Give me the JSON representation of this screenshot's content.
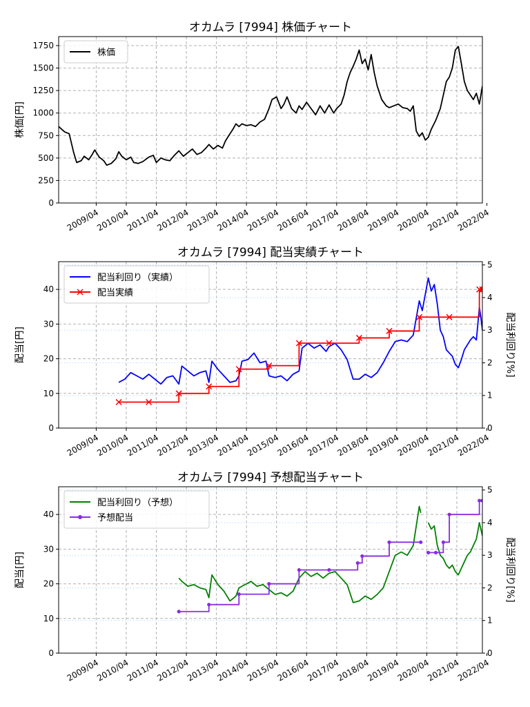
{
  "colors": {
    "price": "#000000",
    "yield_actual": "#0000ff",
    "dividend_actual": "#ff0000",
    "yield_forecast": "#008000",
    "dividend_forecast": "#8a2be2",
    "grid": "#b0b0b0"
  },
  "chart_data": [
    {
      "type": "line",
      "title": "オカムラ [7994]  株価チャート",
      "ylabel": "株価[円]",
      "xlabel": "",
      "ylim": [
        0,
        1850
      ],
      "yticks": [
        0,
        250,
        500,
        750,
        1000,
        1250,
        1500,
        1750
      ],
      "xlim": [
        2008.0,
        2022.1
      ],
      "xticks": [
        {
          "x": 2009.25,
          "label": "2009/04"
        },
        {
          "x": 2010.25,
          "label": "2010/04"
        },
        {
          "x": 2011.25,
          "label": "2011/04"
        },
        {
          "x": 2012.25,
          "label": "2012/04"
        },
        {
          "x": 2013.25,
          "label": "2013/04"
        },
        {
          "x": 2014.25,
          "label": "2014/04"
        },
        {
          "x": 2015.25,
          "label": "2015/04"
        },
        {
          "x": 2016.25,
          "label": "2016/04"
        },
        {
          "x": 2017.25,
          "label": "2017/04"
        },
        {
          "x": 2018.25,
          "label": "2018/04"
        },
        {
          "x": 2019.25,
          "label": "2019/04"
        },
        {
          "x": 2020.25,
          "label": "2020/04"
        },
        {
          "x": 2021.25,
          "label": "2021/04"
        },
        {
          "x": 2022.25,
          "label": "2022/04"
        }
      ],
      "grid": true,
      "legend": "top-left",
      "series": [
        {
          "name": "株価",
          "color": "#000000",
          "x": [
            2008.0,
            2008.2,
            2008.35,
            2008.5,
            2008.6,
            2008.75,
            2008.85,
            2009.0,
            2009.1,
            2009.2,
            2009.35,
            2009.5,
            2009.6,
            2009.75,
            2009.9,
            2010.0,
            2010.1,
            2010.25,
            2010.4,
            2010.5,
            2010.65,
            2010.8,
            2011.0,
            2011.15,
            2011.25,
            2011.4,
            2011.55,
            2011.7,
            2011.85,
            2012.0,
            2012.15,
            2012.3,
            2012.45,
            2012.6,
            2012.75,
            2012.9,
            2013.0,
            2013.15,
            2013.3,
            2013.45,
            2013.55,
            2013.7,
            2013.8,
            2013.9,
            2014.0,
            2014.1,
            2014.25,
            2014.4,
            2014.55,
            2014.7,
            2014.85,
            2015.0,
            2015.1,
            2015.25,
            2015.4,
            2015.5,
            2015.6,
            2015.75,
            2015.9,
            2016.0,
            2016.1,
            2016.25,
            2016.4,
            2016.55,
            2016.7,
            2016.85,
            2017.0,
            2017.15,
            2017.25,
            2017.4,
            2017.5,
            2017.6,
            2017.7,
            2017.8,
            2017.9,
            2018.0,
            2018.1,
            2018.2,
            2018.3,
            2018.4,
            2018.5,
            2018.6,
            2018.75,
            2018.9,
            2019.0,
            2019.15,
            2019.3,
            2019.45,
            2019.6,
            2019.7,
            2019.8,
            2019.9,
            2020.0,
            2020.1,
            2020.2,
            2020.3,
            2020.4,
            2020.55,
            2020.7,
            2020.8,
            2020.9,
            2021.0,
            2021.1,
            2021.2,
            2021.3,
            2021.4,
            2021.5,
            2021.6,
            2021.7,
            2021.8,
            2021.9,
            2022.0,
            2022.1
          ],
          "values": [
            850,
            790,
            770,
            560,
            450,
            470,
            520,
            480,
            530,
            590,
            510,
            470,
            420,
            440,
            490,
            570,
            520,
            480,
            510,
            450,
            440,
            460,
            510,
            530,
            450,
            500,
            480,
            470,
            530,
            580,
            520,
            560,
            600,
            540,
            560,
            610,
            650,
            600,
            640,
            610,
            690,
            770,
            820,
            880,
            850,
            880,
            860,
            870,
            850,
            900,
            930,
            1050,
            1150,
            1180,
            1050,
            1100,
            1180,
            1050,
            1000,
            1080,
            1040,
            1120,
            1050,
            980,
            1080,
            1000,
            1090,
            1000,
            1050,
            1100,
            1200,
            1350,
            1450,
            1520,
            1600,
            1700,
            1550,
            1600,
            1480,
            1650,
            1450,
            1300,
            1150,
            1080,
            1060,
            1080,
            1100,
            1060,
            1050,
            1020,
            1080,
            800,
            740,
            780,
            700,
            730,
            820,
            920,
            1050,
            1200,
            1350,
            1400,
            1500,
            1700,
            1740,
            1550,
            1350,
            1250,
            1200,
            1150,
            1220,
            1100,
            1300
          ]
        }
      ]
    },
    {
      "type": "line",
      "title": "オカムラ [7994]  配当実績チャート",
      "ylabel": "配当[円]",
      "y2label": "配当利回り[%]",
      "xlabel": "",
      "ylim": [
        0,
        48
      ],
      "yticks": [
        0,
        10,
        20,
        30,
        40
      ],
      "y2lim": [
        0,
        5.1
      ],
      "y2ticks": [
        0,
        1,
        2,
        3,
        4,
        5
      ],
      "xlim": [
        2008.0,
        2022.1
      ],
      "grid": true,
      "legend": "top-left",
      "series": [
        {
          "name": "配当利回り（実績）",
          "color": "#0000ff",
          "axis": "right",
          "x": [
            2010.0,
            2010.2,
            2010.4,
            2010.6,
            2010.8,
            2011.0,
            2011.2,
            2011.4,
            2011.6,
            2011.8,
            2012.0,
            2012.1,
            2012.3,
            2012.5,
            2012.7,
            2012.9,
            2013.0,
            2013.1,
            2013.3,
            2013.5,
            2013.7,
            2013.9,
            2014.0,
            2014.1,
            2014.3,
            2014.5,
            2014.7,
            2014.9,
            2015.0,
            2015.2,
            2015.4,
            2015.6,
            2015.8,
            2016.0,
            2016.1,
            2016.3,
            2016.5,
            2016.7,
            2016.9,
            2017.0,
            2017.2,
            2017.4,
            2017.6,
            2017.8,
            2018.0,
            2018.2,
            2018.4,
            2018.6,
            2018.8,
            2019.0,
            2019.2,
            2019.4,
            2019.6,
            2019.8,
            2020.0,
            2020.1,
            2020.2,
            2020.3,
            2020.4,
            2020.5,
            2020.6,
            2020.7,
            2020.8,
            2020.9,
            2021.0,
            2021.1,
            2021.2,
            2021.3,
            2021.4,
            2021.5,
            2021.6,
            2021.7,
            2021.8,
            2021.9,
            2022.0,
            2022.05,
            2022.1
          ],
          "values": [
            1.4,
            1.5,
            1.7,
            1.6,
            1.5,
            1.65,
            1.5,
            1.35,
            1.55,
            1.6,
            1.35,
            1.9,
            1.75,
            1.6,
            1.7,
            1.75,
            1.4,
            2.05,
            1.8,
            1.6,
            1.4,
            1.45,
            1.6,
            2.05,
            2.1,
            2.3,
            2.0,
            2.05,
            1.6,
            1.55,
            1.6,
            1.45,
            1.65,
            1.75,
            2.45,
            2.6,
            2.45,
            2.55,
            2.35,
            2.5,
            2.6,
            2.4,
            2.1,
            1.5,
            1.5,
            1.65,
            1.55,
            1.7,
            2.0,
            2.35,
            2.65,
            2.7,
            2.65,
            2.85,
            3.9,
            3.6,
            4.1,
            4.6,
            4.2,
            4.4,
            3.8,
            3.0,
            2.8,
            2.4,
            2.3,
            2.2,
            1.95,
            1.85,
            2.1,
            2.4,
            2.55,
            2.7,
            2.8,
            2.7,
            3.7,
            3.4,
            3.0
          ]
        },
        {
          "name": "配当実績",
          "color": "#ff0000",
          "axis": "left",
          "step": true,
          "x": [
            2010.0,
            2011.0,
            2012.0,
            2013.0,
            2014.0,
            2015.0,
            2016.0,
            2017.0,
            2018.0,
            2019.0,
            2020.0,
            2021.0,
            2022.0,
            2022.1
          ],
          "values": [
            7.5,
            7.5,
            10,
            12,
            17,
            18,
            24.5,
            24.5,
            26,
            28,
            32,
            32,
            40,
            40
          ]
        }
      ]
    },
    {
      "type": "line",
      "title": "オカムラ [7994]  予想配当チャート",
      "ylabel": "配当[円]",
      "y2label": "配当利回り[%]",
      "xlabel": "",
      "ylim": [
        0,
        48
      ],
      "yticks": [
        0,
        10,
        20,
        30,
        40
      ],
      "y2lim": [
        0,
        5.1
      ],
      "y2ticks": [
        0,
        1,
        2,
        3,
        4,
        5
      ],
      "xlim": [
        2008.0,
        2022.1
      ],
      "grid": true,
      "legend": "top-left",
      "series": [
        {
          "name": "配当利回り（予想）",
          "color": "#008000",
          "axis": "right",
          "segments": [
            {
              "x": [
                2012.0,
                2012.1,
                2012.3,
                2012.5,
                2012.7,
                2012.9,
                2013.0,
                2013.1,
                2013.3,
                2013.5,
                2013.7,
                2013.9,
                2014.0,
                2014.2,
                2014.4,
                2014.6,
                2014.8,
                2015.0,
                2015.2,
                2015.4,
                2015.6,
                2015.8,
                2016.0,
                2016.2,
                2016.4,
                2016.6,
                2016.8,
                2017.0,
                2017.2,
                2017.4,
                2017.6,
                2017.8,
                2018.0,
                2018.2,
                2018.4,
                2018.6,
                2018.8,
                2019.0,
                2019.2,
                2019.4,
                2019.6,
                2019.8,
                2020.0,
                2020.05
              ],
              "values": [
                2.3,
                2.2,
                2.05,
                2.1,
                2.0,
                1.95,
                1.7,
                2.4,
                2.1,
                1.9,
                1.6,
                1.75,
                2.0,
                2.1,
                2.2,
                2.05,
                2.1,
                1.95,
                1.8,
                1.85,
                1.75,
                1.9,
                2.3,
                2.5,
                2.35,
                2.45,
                2.3,
                2.45,
                2.5,
                2.3,
                2.1,
                1.55,
                1.6,
                1.75,
                1.65,
                1.8,
                2.0,
                2.5,
                3.0,
                3.1,
                3.0,
                3.3,
                4.5,
                4.3
              ]
            },
            {
              "x": [
                2020.3,
                2020.4,
                2020.5,
                2020.6,
                2020.7,
                2020.8,
                2020.9,
                2021.0,
                2021.1,
                2021.2,
                2021.3,
                2021.4,
                2021.5,
                2021.6,
                2021.7,
                2021.8,
                2021.9,
                2022.0,
                2022.05,
                2022.1
              ],
              "values": [
                4.0,
                3.8,
                3.9,
                3.3,
                3.0,
                2.9,
                2.7,
                2.6,
                2.7,
                2.5,
                2.4,
                2.6,
                2.8,
                3.0,
                3.1,
                3.3,
                3.5,
                4.0,
                3.8,
                3.6
              ]
            }
          ]
        },
        {
          "name": "予想配当",
          "color": "#8a2be2",
          "axis": "left",
          "step": true,
          "segments": [
            {
              "x": [
                2012.0,
                2013.0,
                2014.0,
                2015.0,
                2016.0,
                2017.0,
                2017.95,
                2018.1,
                2019.0,
                2020.05
              ],
              "values": [
                12,
                14,
                17,
                20,
                24,
                24,
                26,
                28,
                32,
                32
              ]
            },
            {
              "x": [
                2020.3,
                2020.55,
                2020.8,
                2021.0,
                2022.0,
                2022.1
              ],
              "values": [
                29,
                29,
                32,
                40,
                44,
                44
              ]
            }
          ]
        }
      ]
    }
  ]
}
